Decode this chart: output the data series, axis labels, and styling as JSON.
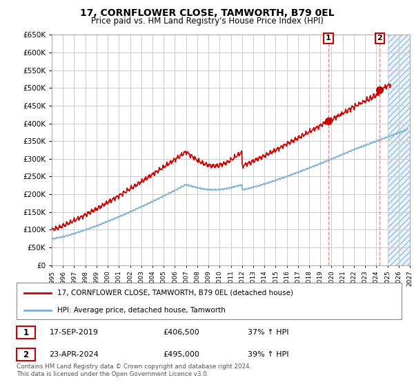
{
  "title": "17, CORNFLOWER CLOSE, TAMWORTH, B79 0EL",
  "subtitle": "Price paid vs. HM Land Registry's House Price Index (HPI)",
  "property_label": "17, CORNFLOWER CLOSE, TAMWORTH, B79 0EL (detached house)",
  "hpi_label": "HPI: Average price, detached house, Tamworth",
  "footnote": "Contains HM Land Registry data © Crown copyright and database right 2024.\nThis data is licensed under the Open Government Licence v3.0.",
  "sale1_date": "17-SEP-2019",
  "sale1_price": 406500,
  "sale1_pct": "37% ↑ HPI",
  "sale2_date": "23-APR-2024",
  "sale2_price": 495000,
  "sale2_pct": "39% ↑ HPI",
  "sale1_year": 2019.72,
  "sale2_year": 2024.31,
  "xlim": [
    1995,
    2027
  ],
  "ylim": [
    0,
    650000
  ],
  "yticks": [
    0,
    50000,
    100000,
    150000,
    200000,
    250000,
    300000,
    350000,
    400000,
    450000,
    500000,
    550000,
    600000,
    650000
  ],
  "xticks": [
    1995,
    1996,
    1997,
    1998,
    1999,
    2000,
    2001,
    2002,
    2003,
    2004,
    2005,
    2006,
    2007,
    2008,
    2009,
    2010,
    2011,
    2012,
    2013,
    2014,
    2015,
    2016,
    2017,
    2018,
    2019,
    2020,
    2021,
    2022,
    2023,
    2024,
    2025,
    2026,
    2027
  ],
  "property_color": "#cc0000",
  "hpi_color": "#7bafd4",
  "shade_color": "#ddeeff",
  "grid_color": "#cccccc",
  "bg_color": "#ffffff",
  "dashed_line_color": "#e88080",
  "future_start": 2025.0
}
